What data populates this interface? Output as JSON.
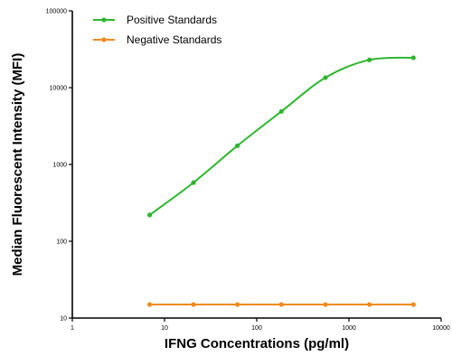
{
  "chart_data": {
    "type": "line",
    "xlabel": "IFNG Concentrations (pg/ml)",
    "ylabel": "Median Fluorescent Intensity (MFI)",
    "x_scale": "log",
    "y_scale": "log",
    "xlim": [
      1,
      10000
    ],
    "ylim": [
      10,
      100000
    ],
    "x_ticks": [
      1,
      10,
      100,
      1000,
      10000
    ],
    "x_tick_labels": [
      "1",
      "10",
      "100",
      "1000",
      "10000"
    ],
    "y_ticks": [
      10,
      100,
      1000,
      10000,
      100000
    ],
    "y_tick_labels": [
      "10",
      "100",
      "1000",
      "10000",
      "100000"
    ],
    "grid": false,
    "legend_position": "top-left",
    "series": [
      {
        "name": "Positive Standards",
        "color": "#2db52d",
        "x": [
          6.9,
          20.6,
          61.7,
          185,
          556,
          1667,
          5000
        ],
        "y": [
          220,
          580,
          1750,
          4900,
          13500,
          23000,
          24500
        ]
      },
      {
        "name": "Negative Standards",
        "color": "#f08a1e",
        "x": [
          6.9,
          20.6,
          61.7,
          185,
          556,
          1667,
          5000
        ],
        "y": [
          15,
          15,
          15,
          15,
          15,
          15,
          15
        ]
      }
    ]
  }
}
